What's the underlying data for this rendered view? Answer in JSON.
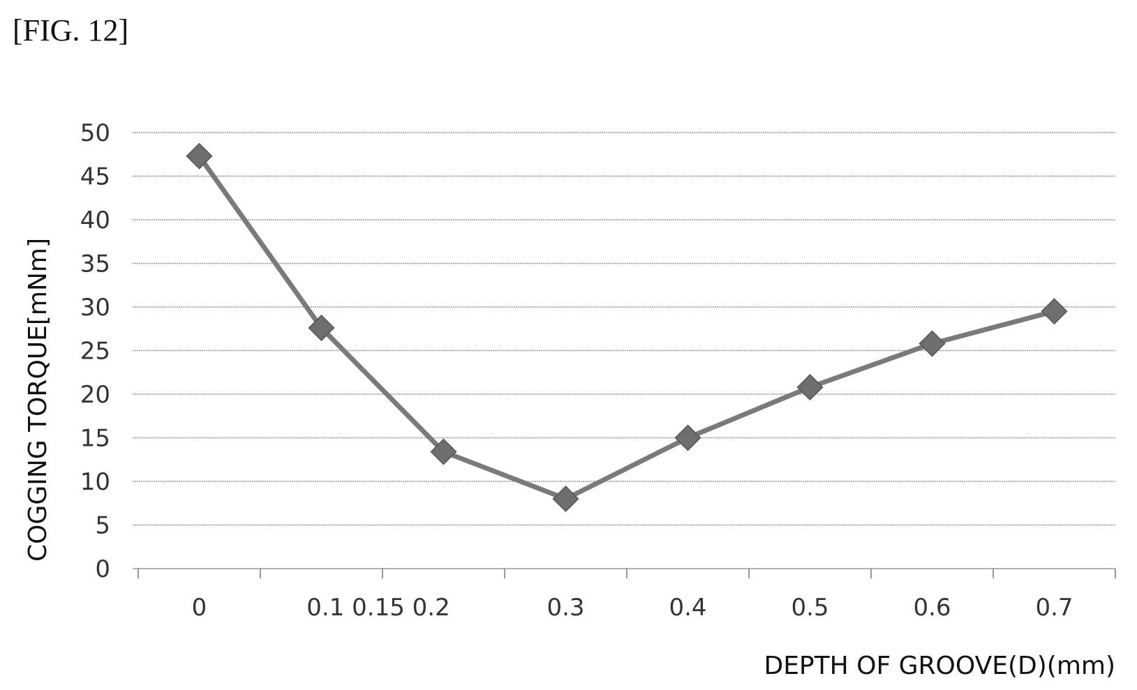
{
  "figure_label": "[FIG. 12]",
  "chart_data": {
    "type": "line",
    "title": "",
    "xlabel": "DEPTH OF GROOVE(D)(mm)",
    "ylabel": "COGGING TORQUE[mNm]",
    "categories": [
      "0",
      "0.1",
      "0.2",
      "0.3",
      "0.4",
      "0.5",
      "0.6",
      "0.7"
    ],
    "x_tick_labels": [
      "0",
      "0.1 0.15 0.2",
      "0.3",
      "0.4",
      "0.5",
      "0.6",
      "0.7"
    ],
    "series": [
      {
        "values": [
          47.3,
          27.6,
          13.4,
          8.0,
          15.0,
          20.8,
          25.8,
          29.5
        ]
      }
    ],
    "ylim": [
      0,
      50
    ],
    "yticks": [
      0,
      5,
      10,
      15,
      20,
      25,
      30,
      35,
      40,
      45,
      50
    ],
    "grid": true,
    "marker": "diamond",
    "line_color": "#7a7a7a",
    "marker_color": "#6e6e6e",
    "grid_color": "#9a9a9a"
  }
}
